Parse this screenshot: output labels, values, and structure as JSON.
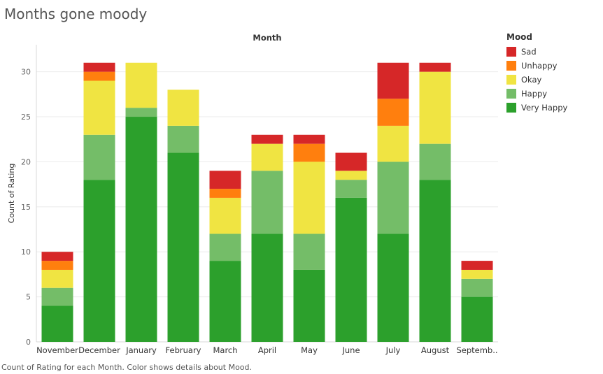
{
  "title": "Months gone moody",
  "caption": "Count of Rating for each Month.  Color shows details about Mood.",
  "chart_data": {
    "type": "bar",
    "stacked": true,
    "x_header": "Month",
    "ylabel": "Count of Rating",
    "ylim": [
      0,
      33
    ],
    "yticks": [
      0,
      5,
      10,
      15,
      20,
      25,
      30
    ],
    "categories": [
      "November",
      "December",
      "January",
      "February",
      "March",
      "April",
      "May",
      "June",
      "July",
      "August",
      "Septemb.."
    ],
    "legend_title": "Mood",
    "legend_position": "right",
    "series": [
      {
        "name": "Very Happy",
        "color": "#2ca02c",
        "values": [
          4,
          18,
          25,
          21,
          9,
          12,
          8,
          16,
          12,
          18,
          5
        ]
      },
      {
        "name": "Happy",
        "color": "#74bd68",
        "values": [
          2,
          5,
          1,
          3,
          3,
          7,
          4,
          2,
          8,
          4,
          2
        ]
      },
      {
        "name": "Okay",
        "color": "#f0e442",
        "values": [
          2,
          6,
          5,
          4,
          4,
          3,
          8,
          1,
          4,
          8,
          1
        ]
      },
      {
        "name": "Unhappy",
        "color": "#ff7f0e",
        "values": [
          1,
          1,
          0,
          0,
          1,
          0,
          2,
          0,
          3,
          0,
          0
        ]
      },
      {
        "name": "Sad",
        "color": "#d62728",
        "values": [
          1,
          1,
          0,
          0,
          2,
          1,
          1,
          2,
          4,
          1,
          1
        ]
      }
    ],
    "legend_order": [
      "Sad",
      "Unhappy",
      "Okay",
      "Happy",
      "Very Happy"
    ],
    "grid": true
  }
}
